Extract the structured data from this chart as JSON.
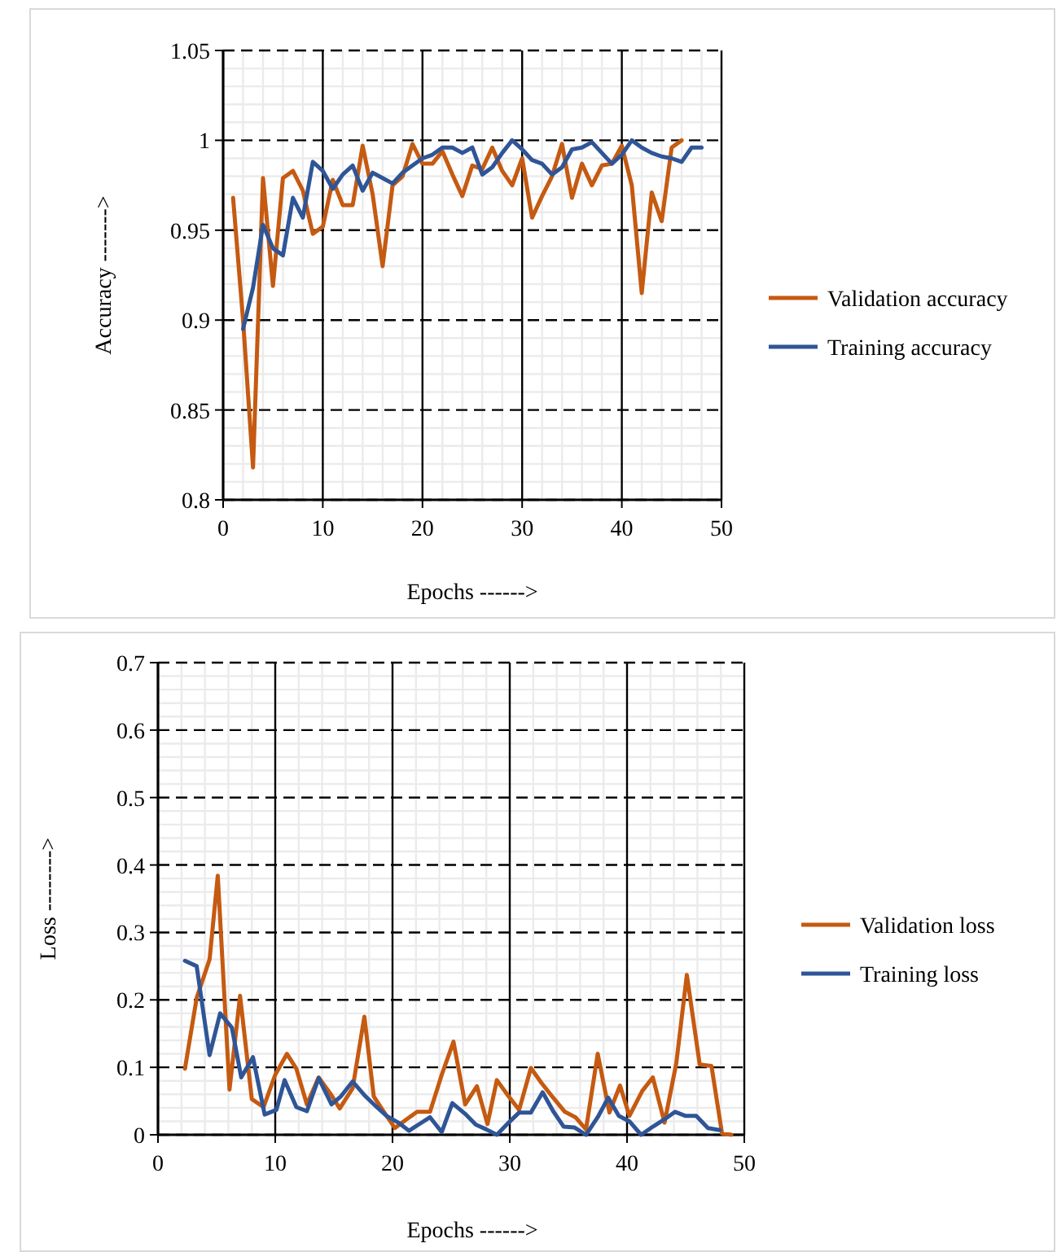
{
  "chart_data": [
    {
      "type": "line",
      "xlabel": "Epochs ------>",
      "ylabel": "Accuracy ------->",
      "xlim": [
        0,
        50
      ],
      "xticks": [
        0,
        10,
        20,
        30,
        40,
        50
      ],
      "ylim": [
        0.8,
        1.05
      ],
      "yticks": [
        0.8,
        0.85,
        0.9,
        0.95,
        1,
        1.05
      ],
      "grid": true,
      "legend": "right",
      "line_style": "solid",
      "marker": "none",
      "series": [
        {
          "name": "Validation accuracy",
          "color": "#c55a11",
          "x": [
            1,
            2,
            3,
            4,
            5,
            6,
            7,
            8,
            9,
            10,
            11,
            12,
            13,
            14,
            15,
            16,
            17,
            18,
            19,
            20,
            21,
            22,
            23,
            24,
            25,
            26,
            27,
            28,
            29,
            30,
            31,
            32,
            33,
            34,
            35,
            36,
            37,
            38,
            39,
            40,
            41,
            42,
            43,
            44,
            45,
            46
          ],
          "values": [
            0.968,
            0.9,
            0.818,
            0.979,
            0.919,
            0.979,
            0.983,
            0.972,
            0.948,
            0.952,
            0.978,
            0.964,
            0.964,
            0.997,
            0.97,
            0.93,
            0.975,
            0.98,
            0.998,
            0.987,
            0.987,
            0.994,
            0.981,
            0.969,
            0.986,
            0.984,
            0.996,
            0.983,
            0.975,
            0.99,
            0.957,
            0.969,
            0.98,
            0.998,
            0.968,
            0.987,
            0.975,
            0.986,
            0.987,
            0.997,
            0.975,
            0.915,
            0.971,
            0.955,
            0.996,
            1
          ]
        },
        {
          "name": "Training accuracy",
          "color": "#2f5597",
          "x": [
            2,
            3,
            4,
            5,
            6,
            7,
            8,
            9,
            10,
            11,
            12,
            13,
            14,
            15,
            16,
            17,
            18,
            19,
            20,
            21,
            22,
            23,
            24,
            25,
            26,
            27,
            28,
            29,
            30,
            31,
            32,
            33,
            34,
            35,
            36,
            37,
            38,
            39,
            40,
            41,
            42,
            43,
            44,
            45,
            46,
            47,
            48
          ],
          "values": [
            0.895,
            0.918,
            0.953,
            0.94,
            0.936,
            0.968,
            0.957,
            0.988,
            0.983,
            0.973,
            0.981,
            0.986,
            0.972,
            0.982,
            0.979,
            0.976,
            0.982,
            0.986,
            0.99,
            0.992,
            0.996,
            0.996,
            0.993,
            0.996,
            0.981,
            0.985,
            0.993,
            1,
            0.995,
            0.989,
            0.987,
            0.981,
            0.985,
            0.995,
            0.996,
            0.999,
            0.993,
            0.987,
            0.992,
            1,
            0.996,
            0.993,
            0.991,
            0.99,
            0.988,
            0.996,
            0.996
          ]
        }
      ]
    },
    {
      "type": "line",
      "xlabel": "Epochs ------>",
      "ylabel": "Loss -------->",
      "xlim": [
        0,
        50
      ],
      "xticks": [
        0,
        10,
        20,
        30,
        40,
        50
      ],
      "ylim": [
        0,
        0.7
      ],
      "yticks": [
        0,
        0.1,
        0.2,
        0.3,
        0.4,
        0.5,
        0.6,
        0.7
      ],
      "grid": true,
      "legend": "right",
      "line_style": "solid",
      "marker": "none",
      "series": [
        {
          "name": "Validation loss",
          "color": "#c55a11",
          "x": [
            2.3,
            3.3,
            4.4,
            5.1,
            6.1,
            7,
            8,
            9,
            10,
            11,
            11.8,
            12.7,
            13.7,
            14.7,
            15.5,
            16.6,
            17.6,
            18.4,
            19.3,
            20.2,
            21.2,
            22.1,
            23.2,
            24.2,
            25.2,
            26.2,
            27.2,
            28.1,
            28.9,
            29.9,
            30.8,
            31.8,
            32.7,
            33.7,
            34.7,
            35.6,
            36.5,
            37.5,
            38.5,
            39.4,
            40.2,
            41.3,
            42.2,
            43.2,
            44.2,
            45.1,
            46.2,
            47.2,
            48.1,
            48.9
          ],
          "values": [
            0.098,
            0.203,
            0.26,
            0.384,
            0.067,
            0.206,
            0.053,
            0.041,
            0.089,
            0.12,
            0.098,
            0.045,
            0.085,
            0.061,
            0.039,
            0.069,
            0.175,
            0.057,
            0.033,
            0.01,
            0.023,
            0.034,
            0.034,
            0.089,
            0.138,
            0.045,
            0.072,
            0.016,
            0.081,
            0.057,
            0.037,
            0.099,
            0.077,
            0.055,
            0.034,
            0.026,
            0.008,
            0.12,
            0.033,
            0.073,
            0.028,
            0.065,
            0.085,
            0.018,
            0.106,
            0.237,
            0.104,
            0.102,
            0.002,
            0
          ]
        },
        {
          "name": "Training loss",
          "color": "#2f5597",
          "x": [
            2.3,
            3.3,
            4.4,
            5.3,
            6.3,
            7.1,
            8.1,
            9.1,
            10.1,
            10.8,
            11.8,
            12.7,
            13.7,
            14.8,
            15.6,
            16.6,
            17.7,
            18.6,
            19.5,
            20.5,
            21.4,
            22.3,
            23.2,
            24.2,
            25.1,
            26.2,
            27.1,
            28,
            28.9,
            29.9,
            30.8,
            31.8,
            32.8,
            33.7,
            34.6,
            35.5,
            36.5,
            37.5,
            38.4,
            39.3,
            40.2,
            41.2,
            42.2,
            43.2,
            44.1,
            45,
            45.9,
            46.9,
            47.9
          ],
          "values": [
            0.258,
            0.25,
            0.118,
            0.18,
            0.159,
            0.085,
            0.115,
            0.03,
            0.037,
            0.081,
            0.041,
            0.035,
            0.084,
            0.045,
            0.057,
            0.079,
            0.057,
            0.042,
            0.028,
            0.018,
            0.006,
            0.016,
            0.026,
            0.004,
            0.047,
            0.031,
            0.015,
            0.008,
            0,
            0.018,
            0.033,
            0.033,
            0.063,
            0.035,
            0.012,
            0.011,
            0,
            0.026,
            0.055,
            0.028,
            0.02,
            0,
            0.012,
            0.023,
            0.034,
            0.028,
            0.028,
            0.01,
            0.007
          ]
        }
      ]
    }
  ]
}
